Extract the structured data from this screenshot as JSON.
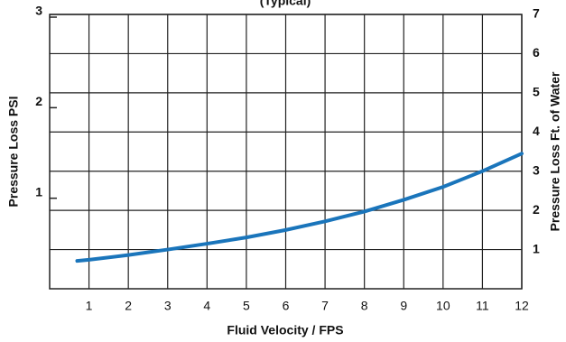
{
  "chart_data": {
    "type": "line",
    "title": "(Typical)",
    "x_label": "Fluid Velocity / FPS",
    "y_label": "Pressure Loss PSI",
    "y2_label": "Pressure Loss Ft. of Water",
    "x": [
      0.7,
      1,
      2,
      3,
      4,
      5,
      6,
      7,
      8,
      9,
      10,
      11,
      12
    ],
    "series": [
      {
        "name": "Pressure Loss",
        "color": "#1a75bb",
        "axis": "y2",
        "values": [
          0.71,
          0.74,
          0.86,
          1.0,
          1.15,
          1.31,
          1.5,
          1.72,
          1.97,
          2.27,
          2.6,
          3.0,
          3.45
        ]
      }
    ],
    "xlim": [
      0,
      12
    ],
    "xticks": [
      1,
      2,
      3,
      4,
      5,
      6,
      7,
      8,
      9,
      10,
      11,
      12
    ],
    "ylim": [
      0,
      3.03
    ],
    "yticks": [
      1,
      2,
      3
    ],
    "y2lim": [
      0,
      7
    ],
    "y2ticks": [
      1,
      2,
      3,
      4,
      5,
      6,
      7
    ],
    "grid": true
  }
}
